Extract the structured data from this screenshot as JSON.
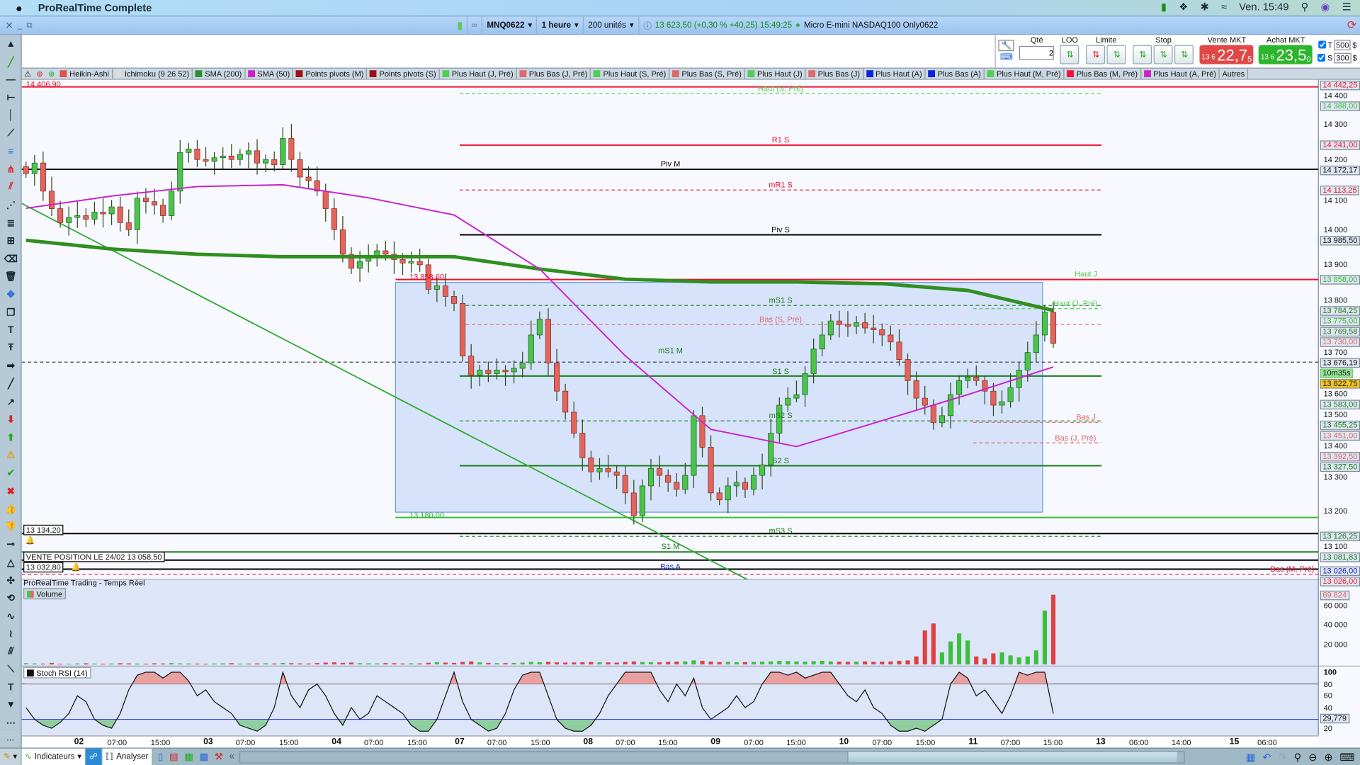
{
  "menubar": {
    "app_title": "ProRealTime Complete",
    "clock": "Ven. 15:49",
    "icons": [
      "apple-icon",
      "trading-icon",
      "dropbox-icon",
      "bluetooth-icon",
      "wifi-icon",
      "search-icon",
      "siri-icon",
      "menu-icon"
    ]
  },
  "toolbar": {
    "instrument": "MNQ0622",
    "timeframe": "1 heure",
    "units": "200 unités",
    "quote": "13 623,50 (+0,30 % +40,25) 15:49:25",
    "instrument_name": "Micro E-mini NASDAQ100 Only0622",
    "status_color": "#3cb043"
  },
  "order_panel": {
    "qty_label": "Qté",
    "qty_value": "2",
    "loo_label": "LOO",
    "limit_label": "Limite",
    "stop_label": "Stop",
    "sell_label": "Vente MKT",
    "sell_prefix": "13 6",
    "sell_price": "22,7",
    "sell_sup": "5",
    "buy_label": "Achat MKT",
    "buy_prefix": "13 6",
    "buy_price": "23,5",
    "buy_sup": "0",
    "t_label": "T",
    "t_value": "500",
    "s_label": "S",
    "s_value": "300",
    "currency": "$",
    "sell_color": "#e04848",
    "buy_color": "#2db52d"
  },
  "indicators": [
    {
      "label": "Heikin-Ashi",
      "color": "#e05050"
    },
    {
      "label": "Ichimoku (9 26 52)",
      "color": "#dddddd"
    },
    {
      "label": "SMA (200)",
      "color": "#2f8f2f"
    },
    {
      "label": "SMA (50)",
      "color": "#d020c8"
    },
    {
      "label": "Points pivots (M)",
      "color": "#a01010"
    },
    {
      "label": "Points pivots (S)",
      "color": "#a01010"
    },
    {
      "label": "Plus Haut (J, Pré)",
      "color": "#55cc55"
    },
    {
      "label": "Plus Bas (J, Pré)",
      "color": "#e06868"
    },
    {
      "label": "Plus Haut (S, Pré)",
      "color": "#55cc55"
    },
    {
      "label": "Plus Bas (S, Pré)",
      "color": "#e06868"
    },
    {
      "label": "Plus Haut (J)",
      "color": "#55cc55"
    },
    {
      "label": "Plus Bas (J)",
      "color": "#e06868"
    },
    {
      "label": "Plus Haut (A)",
      "color": "#1020e0"
    },
    {
      "label": "Plus Bas (A)",
      "color": "#1020e0"
    },
    {
      "label": "Plus Haut (M, Pré)",
      "color": "#55cc55"
    },
    {
      "label": "Plus Bas (M, Pré)",
      "color": "#f0103a"
    },
    {
      "label": "Plus Haut (A, Pré)",
      "color": "#d020c8"
    },
    {
      "label": "Autres",
      "color": ""
    }
  ],
  "left_tools": [
    "scroll-up",
    "trendline",
    "horizontal-line",
    "horizontal-ray",
    "vertical-line",
    "segment",
    "fibonacci",
    "pitchfork",
    "channel",
    "fib-fan",
    "fib-extension",
    "gann",
    "eraser",
    "trash",
    "move",
    "duplicate",
    "text",
    "text-t",
    "arrow-right",
    "line",
    "arrow-line",
    "arrow-down-red",
    "arrow-up-green",
    "warning",
    "check",
    "cross",
    "thumb-up",
    "thumb-down",
    "node",
    "triangle",
    "cross-move",
    "rotate",
    "wave",
    "wave2",
    "parallel",
    "ruler",
    "text-small",
    "collapse",
    "more"
  ],
  "levels": [
    {
      "price": 14406.9,
      "label": "14 406,90",
      "color": "#f0102a",
      "dash": false,
      "from": "full",
      "label_pos": "left"
    },
    {
      "price": 14388,
      "label": "Haut (S, Pré)",
      "color": "#55cc55",
      "dash": true,
      "from": "week",
      "label_pos": "mid"
    },
    {
      "price": 14241,
      "label": "R1 S",
      "color": "#f0102a",
      "dash": false,
      "from": "week",
      "label_pos": "mid"
    },
    {
      "price": 14172.17,
      "label": "Piv M",
      "color": "#000000",
      "dash": false,
      "from": "full",
      "label_pos": "month"
    },
    {
      "price": 14113.25,
      "label": "mR1 S",
      "color": "#f0102a",
      "dash": true,
      "from": "week",
      "label_pos": "mid"
    },
    {
      "price": 13985.5,
      "label": "Piv S",
      "color": "#000000",
      "dash": false,
      "from": "week",
      "label_pos": "mid"
    },
    {
      "price": 13858,
      "label": "Haut J",
      "color": "#f0102a",
      "dash": false,
      "from": "box",
      "label_pos": "right",
      "label_color": "#55cc55"
    },
    {
      "price": 13858,
      "label": "13 858,00",
      "color": "",
      "dash": false,
      "from": "none",
      "label_pos": "box",
      "label_color": "#f0102a"
    },
    {
      "price": 13784.25,
      "label": "mS1 S",
      "color": "#1a7a1a",
      "dash": true,
      "from": "week",
      "label_pos": "mid"
    },
    {
      "price": 13775,
      "label": "Haut (J, Pré)",
      "color": "#55cc55",
      "dash": true,
      "from": "day",
      "label_pos": "right2"
    },
    {
      "price": 13730,
      "label": "Bas (S, Pré)",
      "color": "#e06868",
      "dash": true,
      "from": "week",
      "label_pos": "mid"
    },
    {
      "price": 13640,
      "label": "mS1 M",
      "color": "",
      "dash": false,
      "from": "none",
      "label_pos": "month",
      "label_color": "#1a7a1a"
    },
    {
      "price": 13622.75,
      "label": "",
      "color": "#333333",
      "dash": true,
      "from": "full",
      "label_pos": "none"
    },
    {
      "price": 13583,
      "label": "S1 S",
      "color": "#1a7a1a",
      "dash": false,
      "from": "week",
      "label_pos": "mid"
    },
    {
      "price": 13455.25,
      "label": "mS2 S",
      "color": "#1a7a1a",
      "dash": true,
      "from": "week",
      "label_pos": "mid"
    },
    {
      "price": 13451,
      "label": "Bas J",
      "color": "#e06868",
      "dash": true,
      "from": "day",
      "label_pos": "right"
    },
    {
      "price": 13392.5,
      "label": "Bas (J, Pré)",
      "color": "#e06868",
      "dash": true,
      "from": "day",
      "label_pos": "right2"
    },
    {
      "price": 13327.5,
      "label": "S2 S",
      "color": "#1a7a1a",
      "dash": false,
      "from": "week",
      "label_pos": "mid"
    },
    {
      "price": 13180,
      "label": "13 180,00",
      "color": "#33bb33",
      "dash": false,
      "from": "box",
      "label_pos": "box",
      "label_color": "#33bb33"
    },
    {
      "price": 13134.2,
      "label": "",
      "color": "#000000",
      "dash": false,
      "from": "full",
      "label_pos": "none"
    },
    {
      "price": 13126.25,
      "label": "mS3 S",
      "color": "#1a7a1a",
      "dash": true,
      "from": "week",
      "label_pos": "mid"
    },
    {
      "price": 13081.83,
      "label": "S1 M",
      "color": "#1a7a1a",
      "dash": false,
      "from": "full",
      "label_pos": "month"
    },
    {
      "price": 13058.5,
      "label": "",
      "color": "#000000",
      "dash": false,
      "from": "full",
      "label_pos": "none"
    },
    {
      "price": 13032.8,
      "label": "",
      "color": "#000000",
      "dash": false,
      "from": "full",
      "label_pos": "none"
    },
    {
      "price": 13026,
      "label": "Bas A",
      "color": "",
      "dash": false,
      "from": "none",
      "label_pos": "month",
      "label_color": "#1020e0"
    },
    {
      "price": 13018,
      "label": "Bas (M, Pré)",
      "color": "#f0103a",
      "dash": true,
      "from": "full",
      "label_pos": "far",
      "label_color": "#f0103a"
    }
  ],
  "orders": [
    {
      "price": 13134.2,
      "label": "13 134,20"
    },
    {
      "price": 13058.5,
      "label": "VENTE POSITION LE 24/02 13 058,50"
    },
    {
      "price": 13032.8,
      "label": "13 032,80"
    }
  ],
  "axis_labels": [
    {
      "text": "14 442,25",
      "color": "#f0102a"
    },
    {
      "text": "14 388,00",
      "color": "#33bb33"
    },
    {
      "text": "14 241,00",
      "color": "#f0102a"
    },
    {
      "text": "14 172,17",
      "color": "#111111"
    },
    {
      "text": "14 113,25",
      "color": "#f0102a"
    },
    {
      "text": "13 985,50",
      "color": "#111111"
    },
    {
      "text": "13 858,00",
      "color": "#33bb33"
    },
    {
      "text": "13 784,25",
      "color": "#1a7a1a"
    },
    {
      "text": "13 775,00",
      "color": "#33bb33"
    },
    {
      "text": "13 769,58",
      "color": "#1a7a1a"
    },
    {
      "text": "13 730,00",
      "color": "#e06868"
    },
    {
      "text": "13 676,19",
      "color": "#111111"
    },
    {
      "text": "13 622,75",
      "color": "#111111",
      "bg": "#f5c518"
    },
    {
      "text": "13 583,00",
      "color": "#1a7a1a"
    },
    {
      "text": "13 455,25",
      "color": "#1a7a1a"
    },
    {
      "text": "13 451,00",
      "color": "#e06868"
    },
    {
      "text": "13 392,50",
      "color": "#e06868"
    },
    {
      "text": "13 327,50",
      "color": "#1a7a1a"
    },
    {
      "text": "13 126,25",
      "color": "#1a7a1a"
    },
    {
      "text": "13 081,83",
      "color": "#1a7a1a"
    },
    {
      "text": "13 026,00",
      "color": "#1020e0"
    },
    {
      "text": "13 026,00",
      "color": "#f0102a"
    }
  ],
  "countdown": "10m35s",
  "chart_data": {
    "type": "candlestick",
    "price_ticks": [
      "14 400",
      "14 300",
      "14 200",
      "14 100",
      "14 000",
      "13 900",
      "13 800",
      "13 700",
      "13 600",
      "13 500",
      "13 400",
      "13 300",
      "13 200",
      "13 100"
    ],
    "ylim": [
      13000,
      14450
    ],
    "time_labels": [
      "02",
      "07:00",
      "15:00",
      "03",
      "07:00",
      "15:00",
      "04",
      "07:00",
      "15:00",
      "07",
      "07:00",
      "15:00",
      "08",
      "07:00",
      "15:00",
      "09",
      "07:00",
      "15:00",
      "10",
      "07:00",
      "15:00",
      "11",
      "07:00",
      "15:00",
      "13",
      "06:00",
      "14:00",
      "15",
      "06:00"
    ],
    "closes": [
      14160,
      14190,
      14110,
      14060,
      14020,
      14035,
      14040,
      14030,
      14050,
      14045,
      14065,
      14020,
      14000,
      14090,
      14080,
      14070,
      14040,
      14110,
      14220,
      14230,
      14200,
      14195,
      14205,
      14210,
      14200,
      14215,
      14225,
      14190,
      14200,
      14185,
      14260,
      14200,
      14150,
      14140,
      14110,
      14060,
      14000,
      13930,
      13890,
      13910,
      13920,
      13940,
      13930,
      13915,
      13905,
      13910,
      13900,
      13830,
      13840,
      13810,
      13790,
      13640,
      13585,
      13600,
      13590,
      13600,
      13595,
      13605,
      13620,
      13700,
      13745,
      13620,
      13540,
      13480,
      13420,
      13350,
      13310,
      13320,
      13310,
      13300,
      13250,
      13185,
      13270,
      13320,
      13300,
      13280,
      13260,
      13300,
      13470,
      13380,
      13250,
      13230,
      13270,
      13280,
      13260,
      13300,
      13330,
      13420,
      13500,
      13520,
      13530,
      13590,
      13660,
      13700,
      13740,
      13730,
      13725,
      13735,
      13720,
      13715,
      13700,
      13680,
      13630,
      13570,
      13520,
      13500,
      13450,
      13470,
      13530,
      13570,
      13580,
      13570,
      13540,
      13500,
      13510,
      13550,
      13600,
      13650,
      13700,
      13765,
      13676
    ],
    "sma200_every10": [
      13970,
      13945,
      13930,
      13923,
      13923,
      13923,
      13888,
      13859,
      13851,
      13851,
      13846,
      13827,
      13770
    ],
    "sma50_every10": [
      14061,
      14096,
      14123,
      14128,
      14091,
      14042,
      13888,
      13641,
      13431,
      13382,
      13456,
      13530,
      13609
    ],
    "sma200_color": "#2f8f1f",
    "sma50_color": "#cc22cc",
    "box": {
      "high": 13850,
      "low": 13195
    },
    "trendline": {
      "start": 14075,
      "end": 12995
    },
    "volume": {
      "title": "Volume",
      "ticks": [
        "60 000",
        "40 000",
        "20 000"
      ],
      "last_label": "69 824",
      "values": [
        1200,
        900,
        800,
        1500,
        700,
        600,
        900,
        1100,
        800,
        700,
        900,
        1200,
        1000,
        800,
        700,
        1100,
        900,
        1300,
        1000,
        900,
        800,
        700,
        900,
        1000,
        1200,
        800,
        900,
        1000,
        1100,
        900,
        1400,
        1200,
        1000,
        900,
        1300,
        1800,
        2000,
        1500,
        1800,
        1200,
        1100,
        1000,
        1300,
        1200,
        900,
        1100,
        1000,
        1600,
        2200,
        1800,
        1500,
        2500,
        3000,
        2000,
        1500,
        1200,
        1300,
        1400,
        1800,
        2500,
        2200,
        2600,
        2000,
        1800,
        1900,
        2200,
        2400,
        2100,
        2000,
        1800,
        2500,
        3000,
        2400,
        2200,
        2000,
        2500,
        2800,
        3000,
        4000,
        3500,
        2800,
        2400,
        2600,
        2200,
        2300,
        2500,
        2800,
        3000,
        3500,
        3300,
        3000,
        2800,
        3200,
        3600,
        3000,
        2800,
        2600,
        2800,
        3000,
        2600,
        2800,
        3000,
        3500,
        4000,
        8000,
        34000,
        41000,
        12000,
        23000,
        31000,
        24000,
        8000,
        6000,
        11000,
        12000,
        9000,
        7000,
        8000,
        14000,
        54000,
        69824
      ]
    },
    "stoch_rsi": {
      "title": "Stoch RSI (14)",
      "ticks": [
        "100",
        "80",
        "60",
        "40",
        "20"
      ],
      "last_label": "29,779",
      "upper": 80,
      "lower": 20,
      "values": [
        40,
        20,
        10,
        5,
        15,
        30,
        60,
        50,
        20,
        10,
        5,
        30,
        70,
        95,
        100,
        100,
        90,
        100,
        100,
        85,
        60,
        70,
        50,
        40,
        30,
        10,
        5,
        0,
        10,
        40,
        100,
        60,
        40,
        70,
        80,
        60,
        30,
        10,
        40,
        20,
        30,
        60,
        50,
        40,
        30,
        10,
        0,
        0,
        20,
        60,
        100,
        50,
        20,
        10,
        0,
        5,
        30,
        70,
        95,
        100,
        100,
        60,
        20,
        5,
        0,
        0,
        10,
        30,
        60,
        80,
        100,
        100,
        100,
        100,
        70,
        50,
        80,
        60,
        90,
        40,
        20,
        30,
        40,
        60,
        40,
        50,
        80,
        100,
        100,
        95,
        100,
        90,
        95,
        100,
        100,
        80,
        60,
        50,
        70,
        40,
        30,
        10,
        0,
        0,
        5,
        0,
        10,
        20,
        80,
        100,
        90,
        60,
        70,
        50,
        30,
        60,
        100,
        95,
        100,
        100,
        29.779
      ]
    }
  },
  "panel_title": "ProRealTime Trading - Temps Réel",
  "bottombar": {
    "indicators_label": "Indicateurs",
    "analyse_label": "Analyser"
  }
}
